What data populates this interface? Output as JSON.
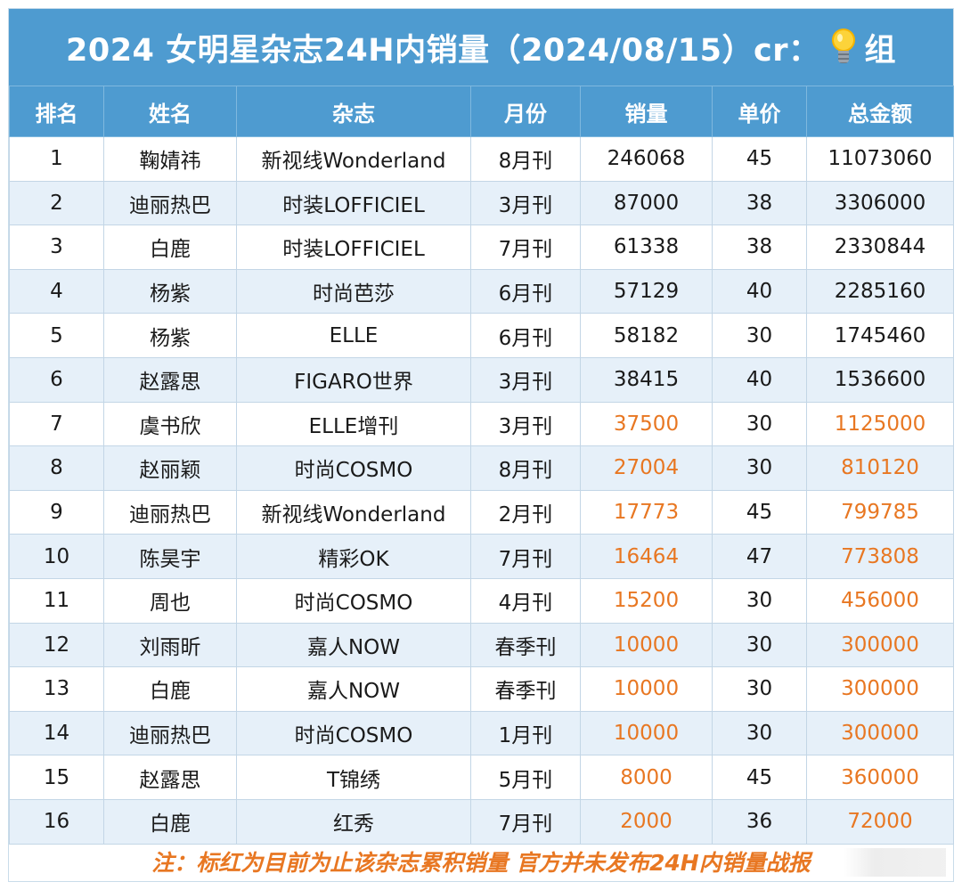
{
  "title": {
    "prefix": "2024 女明星杂志24H内销量（2024/08/15）cr：",
    "suffix": "组",
    "icon": "lightbulb-icon"
  },
  "colors": {
    "header_bg": "#4e9bd0",
    "row_alt": "#e6f0f9",
    "highlight": "#e87722"
  },
  "headers": [
    "排名",
    "姓名",
    "杂志",
    "月份",
    "销量",
    "单价",
    "总金额"
  ],
  "rows": [
    {
      "rank": "1",
      "name": "鞠婧祎",
      "magazine": "新视线Wonderland",
      "month": "8月刊",
      "sales": "246068",
      "price": "45",
      "total": "11073060",
      "highlight": false
    },
    {
      "rank": "2",
      "name": "迪丽热巴",
      "magazine": "时装LOFFICIEL",
      "month": "3月刊",
      "sales": "87000",
      "price": "38",
      "total": "3306000",
      "highlight": false
    },
    {
      "rank": "3",
      "name": "白鹿",
      "magazine": "时装LOFFICIEL",
      "month": "7月刊",
      "sales": "61338",
      "price": "38",
      "total": "2330844",
      "highlight": false
    },
    {
      "rank": "4",
      "name": "杨紫",
      "magazine": "时尚芭莎",
      "month": "6月刊",
      "sales": "57129",
      "price": "40",
      "total": "2285160",
      "highlight": false
    },
    {
      "rank": "5",
      "name": "杨紫",
      "magazine": "ELLE",
      "month": "6月刊",
      "sales": "58182",
      "price": "30",
      "total": "1745460",
      "highlight": false
    },
    {
      "rank": "6",
      "name": "赵露思",
      "magazine": "FIGARO世界",
      "month": "3月刊",
      "sales": "38415",
      "price": "40",
      "total": "1536600",
      "highlight": false
    },
    {
      "rank": "7",
      "name": "虞书欣",
      "magazine": "ELLE增刊",
      "month": "3月刊",
      "sales": "37500",
      "price": "30",
      "total": "1125000",
      "highlight": true
    },
    {
      "rank": "8",
      "name": "赵丽颖",
      "magazine": "时尚COSMO",
      "month": "8月刊",
      "sales": "27004",
      "price": "30",
      "total": "810120",
      "highlight": true
    },
    {
      "rank": "9",
      "name": "迪丽热巴",
      "magazine": "新视线Wonderland",
      "month": "2月刊",
      "sales": "17773",
      "price": "45",
      "total": "799785",
      "highlight": true
    },
    {
      "rank": "10",
      "name": "陈昊宇",
      "magazine": "精彩OK",
      "month": "7月刊",
      "sales": "16464",
      "price": "47",
      "total": "773808",
      "highlight": true
    },
    {
      "rank": "11",
      "name": "周也",
      "magazine": "时尚COSMO",
      "month": "4月刊",
      "sales": "15200",
      "price": "30",
      "total": "456000",
      "highlight": true
    },
    {
      "rank": "12",
      "name": "刘雨昕",
      "magazine": "嘉人NOW",
      "month": "春季刊",
      "sales": "10000",
      "price": "30",
      "total": "300000",
      "highlight": true
    },
    {
      "rank": "13",
      "name": "白鹿",
      "magazine": "嘉人NOW",
      "month": "春季刊",
      "sales": "10000",
      "price": "30",
      "total": "300000",
      "highlight": true
    },
    {
      "rank": "14",
      "name": "迪丽热巴",
      "magazine": "时尚COSMO",
      "month": "1月刊",
      "sales": "10000",
      "price": "30",
      "total": "300000",
      "highlight": true
    },
    {
      "rank": "15",
      "name": "赵露思",
      "magazine": "T锦绣",
      "month": "5月刊",
      "sales": "8000",
      "price": "45",
      "total": "360000",
      "highlight": true
    },
    {
      "rank": "16",
      "name": "白鹿",
      "magazine": "红秀",
      "month": "7月刊",
      "sales": "2000",
      "price": "36",
      "total": "72000",
      "highlight": true
    }
  ],
  "note": "注：标红为目前为止该杂志累积销量 官方并未发布24H内销量战报"
}
